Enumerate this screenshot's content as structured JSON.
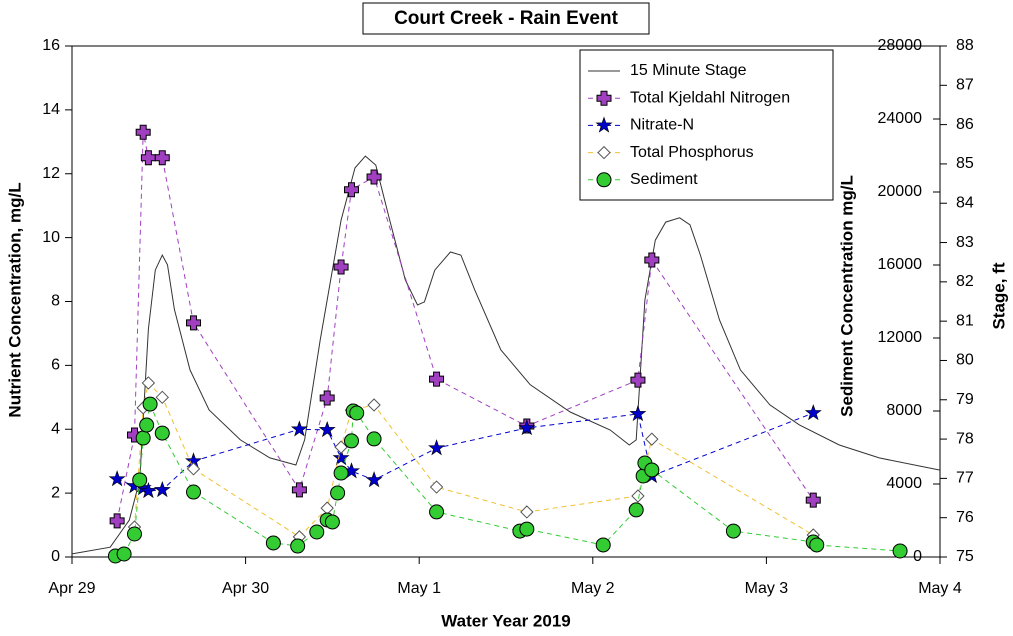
{
  "chart_data": {
    "type": "scatter",
    "title": "Court Creek - Rain Event",
    "x_label": "Water Year 2019",
    "y_label": "Nutrient Concentration, mg/L",
    "y2_label": "Sediment Concentration mg/L",
    "y3_label": "Stage, ft",
    "xlim": [
      0,
      5
    ],
    "xticks": [
      {
        "value": 0,
        "label": "Apr 29"
      },
      {
        "value": 1,
        "label": "Apr 30"
      },
      {
        "value": 2,
        "label": "May 1"
      },
      {
        "value": 3,
        "label": "May 2"
      },
      {
        "value": 4,
        "label": "May 3"
      },
      {
        "value": 5,
        "label": "May 4"
      }
    ],
    "ylim": [
      0,
      16
    ],
    "yticks": [
      0,
      2,
      4,
      6,
      8,
      10,
      12,
      14,
      16
    ],
    "y2lim": [
      0,
      28000
    ],
    "y2ticks": [
      0,
      4000,
      8000,
      12000,
      16000,
      20000,
      24000,
      28000
    ],
    "y3lim": [
      75,
      88
    ],
    "y3ticks": [
      75,
      76,
      77,
      78,
      79,
      80,
      81,
      82,
      83,
      84,
      85,
      86,
      87,
      88
    ],
    "series": [
      {
        "name": "15 Minute Stage",
        "color": "#333333",
        "marker": "none",
        "axis": "y3",
        "x": [
          0,
          0.22,
          0.33,
          0.39,
          0.44,
          0.48,
          0.52,
          0.55,
          0.59,
          0.68,
          0.79,
          0.97,
          1.14,
          1.29,
          1.34,
          1.43,
          1.55,
          1.63,
          1.69,
          1.75,
          1.83,
          1.92,
          1.99,
          2.03,
          2.09,
          2.18,
          2.24,
          2.32,
          2.47,
          2.64,
          2.87,
          3.1,
          3.21,
          3.25,
          3.3,
          3.36,
          3.42,
          3.5,
          3.56,
          3.62,
          3.73,
          3.85,
          4.02,
          4.19,
          4.42,
          4.65,
          5.0
        ],
        "values": [
          75.08,
          75.25,
          75.94,
          76.96,
          80.8,
          82.3,
          82.68,
          82.43,
          81.3,
          79.76,
          78.74,
          77.98,
          77.52,
          77.34,
          77.98,
          80.52,
          83.57,
          84.9,
          85.2,
          84.97,
          83.57,
          82.05,
          81.41,
          81.49,
          82.3,
          82.76,
          82.68,
          81.79,
          80.27,
          79.38,
          78.69,
          78.23,
          77.85,
          77.98,
          81.54,
          83.06,
          83.52,
          83.63,
          83.45,
          82.68,
          81.03,
          79.76,
          78.87,
          78.36,
          77.85,
          77.52,
          77.21
        ]
      },
      {
        "name": "Total Kjeldahl Nitrogen",
        "color": "#a040c0",
        "marker": "plus",
        "axis": "y",
        "x": [
          0.26,
          0.36,
          0.41,
          0.44,
          0.52,
          0.7,
          1.31,
          1.47,
          1.55,
          1.61,
          1.74,
          2.1,
          2.62,
          3.26,
          3.34,
          4.27
        ],
        "values": [
          1.13,
          3.82,
          13.3,
          12.5,
          12.5,
          7.33,
          2.1,
          4.98,
          9.08,
          11.5,
          11.9,
          5.57,
          4.1,
          5.54,
          9.3,
          1.78
        ]
      },
      {
        "name": "Nitrate-N",
        "color": "#0000cc",
        "marker": "star",
        "axis": "y",
        "x": [
          0.26,
          0.36,
          0.41,
          0.44,
          0.52,
          0.7,
          1.31,
          1.47,
          1.55,
          1.61,
          1.74,
          2.1,
          2.62,
          3.26,
          3.34,
          4.27
        ],
        "values": [
          2.44,
          2.22,
          2.16,
          2.07,
          2.1,
          3.0,
          4.0,
          3.98,
          3.1,
          2.69,
          2.41,
          3.41,
          4.04,
          4.48,
          2.54,
          4.51
        ]
      },
      {
        "name": "Total Phosphorus",
        "color": "#f0c030",
        "marker": "diamond",
        "axis": "y",
        "x": [
          0.36,
          0.41,
          0.44,
          0.52,
          0.7,
          1.31,
          1.47,
          1.55,
          1.61,
          1.74,
          2.1,
          2.62,
          3.26,
          3.34,
          4.27
        ],
        "values": [
          0.94,
          4.67,
          5.45,
          5.0,
          2.76,
          0.63,
          1.53,
          3.44,
          4.6,
          4.76,
          2.19,
          1.41,
          1.91,
          3.69,
          0.69
        ]
      },
      {
        "name": "Sediment",
        "color": "#33cc33",
        "marker": "circle",
        "axis": "y2",
        "x": [
          0.25,
          0.3,
          0.36,
          0.39,
          0.41,
          0.43,
          0.45,
          0.52,
          0.7,
          1.16,
          1.3,
          1.41,
          1.47,
          1.5,
          1.53,
          1.55,
          1.61,
          1.62,
          1.64,
          1.74,
          2.1,
          2.58,
          2.62,
          3.06,
          3.25,
          3.29,
          3.3,
          3.34,
          3.81,
          4.27,
          4.29,
          4.77
        ],
        "values": [
          55,
          165,
          1260,
          4220,
          6520,
          7230,
          8380,
          6790,
          3560,
          770,
          600,
          1370,
          2030,
          1920,
          3510,
          4600,
          6360,
          8000,
          7890,
          6470,
          2470,
          1420,
          1530,
          660,
          2580,
          4440,
          5150,
          4770,
          1420,
          820,
          660,
          330
        ]
      }
    ]
  }
}
